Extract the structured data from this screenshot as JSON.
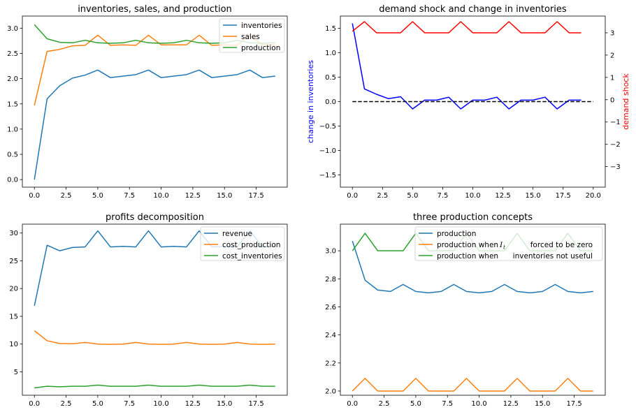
{
  "colors": {
    "c0": "#1f77b4",
    "c1": "#ff7f0e",
    "c2": "#2ca02c",
    "blue": "#0000ff",
    "red": "#ff0000",
    "black": "#000000"
  },
  "chart_data": [
    {
      "type": "line",
      "title": "inventories, sales, and production",
      "xlabel": "",
      "ylabel": "",
      "x": [
        0,
        1,
        2,
        3,
        4,
        5,
        6,
        7,
        8,
        9,
        10,
        11,
        12,
        13,
        14,
        15,
        16,
        17,
        18,
        19
      ],
      "xlim": [
        -0.95,
        19.95
      ],
      "ylim": [
        -0.15,
        3.24
      ],
      "xticks": [
        0,
        2.5,
        5,
        7.5,
        10,
        12.5,
        15,
        17.5
      ],
      "xtick_labels": [
        "0.0",
        "2.5",
        "5.0",
        "7.5",
        "10.0",
        "12.5",
        "15.0",
        "17.5"
      ],
      "yticks": [
        0,
        0.5,
        1,
        1.5,
        2,
        2.5,
        3
      ],
      "ytick_labels": [
        "0.0",
        "0.5",
        "1.0",
        "1.5",
        "2.0",
        "2.5",
        "3.0"
      ],
      "legend_position": "top-right",
      "series": [
        {
          "name": "inventories",
          "color": "#1f77b4",
          "values": [
            0,
            1.6,
            1.86,
            2.01,
            2.07,
            2.17,
            2.02,
            2.05,
            2.08,
            2.17,
            2.02,
            2.05,
            2.08,
            2.17,
            2.02,
            2.05,
            2.08,
            2.17,
            2.02,
            2.05
          ]
        },
        {
          "name": "sales",
          "color": "#ff7f0e",
          "values": [
            1.47,
            2.54,
            2.58,
            2.65,
            2.66,
            2.86,
            2.66,
            2.67,
            2.66,
            2.86,
            2.67,
            2.67,
            2.67,
            2.86,
            2.66,
            2.67,
            2.66,
            2.86,
            2.67,
            2.67
          ]
        },
        {
          "name": "production",
          "color": "#2ca02c",
          "values": [
            3.07,
            2.79,
            2.72,
            2.71,
            2.76,
            2.71,
            2.7,
            2.71,
            2.76,
            2.71,
            2.7,
            2.71,
            2.76,
            2.71,
            2.7,
            2.71,
            2.76,
            2.71,
            2.7,
            2.71
          ]
        }
      ]
    },
    {
      "type": "line",
      "title": "demand shock and change in inventories",
      "xlabel": "",
      "ylabel": "change in inventories",
      "ylabel_right": "demand shock",
      "x": [
        0,
        1,
        2,
        3,
        4,
        5,
        6,
        7,
        8,
        9,
        10,
        11,
        12,
        13,
        14,
        15,
        16,
        17,
        18,
        19
      ],
      "xlim": [
        -1,
        21
      ],
      "ylim": [
        -1.75,
        1.75
      ],
      "ylim_right": [
        -3.92,
        3.75
      ],
      "xticks": [
        0,
        2.5,
        5,
        7.5,
        10,
        12.5,
        15,
        17.5,
        20
      ],
      "xtick_labels": [
        "0.0",
        "2.5",
        "5.0",
        "7.5",
        "10.0",
        "12.5",
        "15.0",
        "17.5",
        "20.0"
      ],
      "yticks": [
        -1.5,
        -1,
        -0.5,
        0,
        0.5,
        1,
        1.5
      ],
      "ytick_labels": [
        "−1.5",
        "−1.0",
        "−0.5",
        "0.0",
        "0.5",
        "1.0",
        "1.5"
      ],
      "yticks_right": [
        -3,
        -2,
        -1,
        0,
        1,
        2,
        3
      ],
      "ytick_labels_right": [
        "−3",
        "−2",
        "−1",
        "0",
        "1",
        "2",
        "3"
      ],
      "series": [
        {
          "axis": "left",
          "color": "#0000ff",
          "values": [
            1.6,
            0.26,
            0.15,
            0.06,
            0.1,
            -0.15,
            0.03,
            0.03,
            0.09,
            -0.15,
            0.03,
            0.03,
            0.09,
            -0.15,
            0.03,
            0.03,
            0.09,
            -0.15,
            0.03,
            0.03
          ]
        },
        {
          "axis": "right",
          "color": "#ff0000",
          "values": [
            3.07,
            3.5,
            3.0,
            3.0,
            3.0,
            3.5,
            3.0,
            3.0,
            3.0,
            3.5,
            3.0,
            3.0,
            3.0,
            3.5,
            3.0,
            3.0,
            3.0,
            3.5,
            3.0,
            3.0
          ]
        },
        {
          "axis": "left",
          "color": "#000000",
          "dashed": true,
          "x": [
            0,
            20
          ],
          "values": [
            0,
            0
          ]
        }
      ]
    },
    {
      "type": "line",
      "title": "profits decomposition",
      "xlabel": "",
      "ylabel": "",
      "x": [
        0,
        1,
        2,
        3,
        4,
        5,
        6,
        7,
        8,
        9,
        10,
        11,
        12,
        13,
        14,
        15,
        16,
        17,
        18,
        19
      ],
      "xlim": [
        -0.95,
        19.95
      ],
      "ylim": [
        0.78,
        31.6
      ],
      "xticks": [
        0,
        2.5,
        5,
        7.5,
        10,
        12.5,
        15,
        17.5
      ],
      "xtick_labels": [
        "0.0",
        "2.5",
        "5.0",
        "7.5",
        "10.0",
        "12.5",
        "15.0",
        "17.5"
      ],
      "yticks": [
        5,
        10,
        15,
        20,
        25,
        30
      ],
      "ytick_labels": [
        "5",
        "10",
        "15",
        "20",
        "25",
        "30"
      ],
      "legend_position": "top-right",
      "series": [
        {
          "name": "revenue",
          "color": "#1f77b4",
          "values": [
            16.9,
            27.8,
            26.8,
            27.4,
            27.5,
            30.4,
            27.5,
            27.6,
            27.5,
            30.4,
            27.5,
            27.6,
            27.5,
            30.4,
            27.5,
            27.6,
            27.5,
            30.4,
            27.5,
            27.6
          ]
        },
        {
          "name": "cost_production",
          "color": "#ff7f0e",
          "values": [
            12.4,
            10.6,
            10.1,
            10.05,
            10.3,
            10.0,
            9.95,
            10.0,
            10.3,
            10.0,
            9.95,
            10.0,
            10.3,
            10.0,
            9.95,
            10.0,
            10.3,
            10.0,
            9.95,
            10.0
          ]
        },
        {
          "name": "cost_inventories",
          "color": "#2ca02c",
          "values": [
            2.1,
            2.4,
            2.3,
            2.4,
            2.4,
            2.6,
            2.4,
            2.4,
            2.4,
            2.6,
            2.4,
            2.4,
            2.4,
            2.6,
            2.4,
            2.4,
            2.4,
            2.6,
            2.4,
            2.4
          ]
        }
      ]
    },
    {
      "type": "line",
      "title": "three production concepts",
      "xlabel": "",
      "ylabel": "",
      "x": [
        0,
        1,
        2,
        3,
        4,
        5,
        6,
        7,
        8,
        9,
        10,
        11,
        12,
        13,
        14,
        15,
        16,
        17,
        18,
        19
      ],
      "xlim": [
        -0.95,
        19.95
      ],
      "ylim": [
        1.97,
        3.19
      ],
      "xticks": [
        0,
        2.5,
        5,
        7.5,
        10,
        12.5,
        15,
        17.5
      ],
      "xtick_labels": [
        "0.0",
        "2.5",
        "5.0",
        "7.5",
        "10.0",
        "12.5",
        "15.0",
        "17.5"
      ],
      "yticks": [
        2.0,
        2.2,
        2.4,
        2.6,
        2.8,
        3.0
      ],
      "ytick_labels": [
        "2.0",
        "2.2",
        "2.4",
        "2.6",
        "2.8",
        "3.0"
      ],
      "legend_position": "top-right",
      "series": [
        {
          "name": "production",
          "color": "#1f77b4",
          "values": [
            3.07,
            2.79,
            2.72,
            2.71,
            2.76,
            2.71,
            2.7,
            2.71,
            2.76,
            2.71,
            2.7,
            2.71,
            2.76,
            2.71,
            2.7,
            2.71,
            2.76,
            2.71,
            2.7,
            2.71
          ]
        },
        {
          "name": "production when  $I_t$  forced to be zero",
          "color": "#ff7f0e",
          "values": [
            2.0,
            2.09,
            2.0,
            2.0,
            2.0,
            2.09,
            2.0,
            2.0,
            2.0,
            2.09,
            2.0,
            2.0,
            2.0,
            2.09,
            2.0,
            2.0,
            2.0,
            2.09,
            2.0,
            2.0
          ]
        },
        {
          "name": "production when  inventories not useful",
          "color": "#2ca02c",
          "values": [
            3.0,
            3.125,
            3.0,
            3.0,
            3.0,
            3.125,
            3.0,
            3.0,
            3.0,
            3.125,
            3.0,
            3.0,
            3.0,
            3.125,
            3.0,
            3.0,
            3.0,
            3.125,
            3.0,
            3.0
          ]
        }
      ],
      "legend_labels": [
        {
          "prefix": "production",
          "var": "",
          "suffix": ""
        },
        {
          "prefix": "production when",
          "var": "I",
          "var_sub": "t",
          "suffix": "forced to be zero"
        },
        {
          "prefix": "production when",
          "var": "",
          "suffix": "inventories not useful"
        }
      ]
    }
  ]
}
